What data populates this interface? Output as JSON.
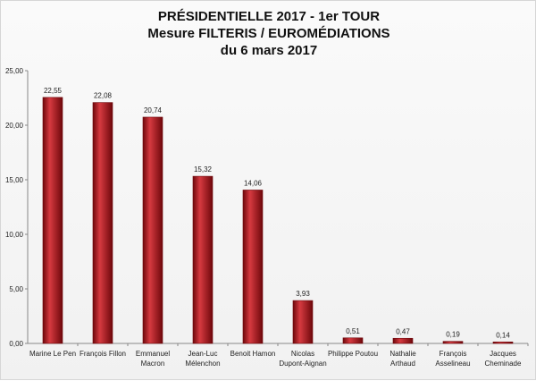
{
  "title_lines": [
    "PRÉSIDENTIELLE 2017 - 1er TOUR",
    "Mesure FILTERIS / EUROMÉDIATIONS",
    "du 6 mars 2017"
  ],
  "colors": {
    "bar_fill": "#a50e15",
    "bar_dark": "#6e070b",
    "bar_light": "#d63a40",
    "axis": "#888888",
    "grid": "#d0d0d0"
  },
  "chart_data": {
    "type": "bar",
    "title": "PRÉSIDENTIELLE 2017 - 1er TOUR / Mesure FILTERIS / EUROMÉDIATIONS / du 6 mars 2017",
    "xlabel": "",
    "ylabel": "",
    "ylim": [
      0,
      25
    ],
    "y_ticks": [
      "0,00",
      "5,00",
      "10,00",
      "15,00",
      "20,00",
      "25,00"
    ],
    "y_tick_values": [
      0,
      5,
      10,
      15,
      20,
      25
    ],
    "grid": false,
    "legend": "none",
    "categories": [
      [
        "Marine Le Pen"
      ],
      [
        "François Fillon"
      ],
      [
        "Emmanuel",
        "Macron"
      ],
      [
        "Jean-Luc",
        "Mélenchon"
      ],
      [
        "Benoit Hamon"
      ],
      [
        "Nicolas",
        "Dupont-Aignan"
      ],
      [
        "Philippe Poutou"
      ],
      [
        "Nathalie",
        "Arthaud"
      ],
      [
        "François",
        "Asselineau"
      ],
      [
        "Jacques",
        "Cheminade"
      ]
    ],
    "values": [
      22.55,
      22.08,
      20.74,
      15.32,
      14.06,
      3.93,
      0.51,
      0.47,
      0.19,
      0.14
    ],
    "value_labels": [
      "22,55",
      "22,08",
      "20,74",
      "15,32",
      "14,06",
      "3,93",
      "0,51",
      "0,47",
      "0,19",
      "0,14"
    ]
  }
}
